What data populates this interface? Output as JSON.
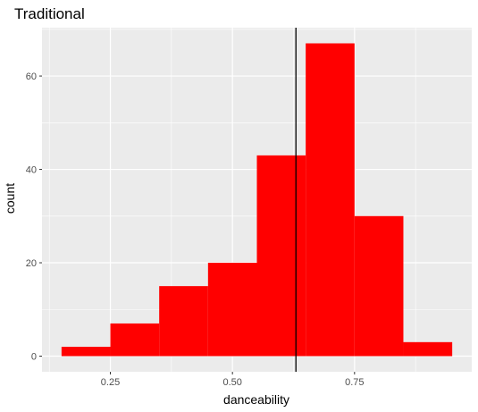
{
  "chart_data": {
    "type": "bar",
    "title": "Traditional",
    "xlabel": "danceability",
    "ylabel": "count",
    "bins": [
      {
        "x0": 0.15,
        "x1": 0.25,
        "count": 2
      },
      {
        "x0": 0.25,
        "x1": 0.35,
        "count": 7
      },
      {
        "x0": 0.35,
        "x1": 0.45,
        "count": 15
      },
      {
        "x0": 0.45,
        "x1": 0.55,
        "count": 20
      },
      {
        "x0": 0.55,
        "x1": 0.65,
        "count": 43
      },
      {
        "x0": 0.65,
        "x1": 0.75,
        "count": 67
      },
      {
        "x0": 0.75,
        "x1": 0.85,
        "count": 30
      },
      {
        "x0": 0.85,
        "x1": 0.95,
        "count": 3
      }
    ],
    "vline_x": 0.63,
    "xlim": [
      0.11,
      0.99
    ],
    "ylim": [
      -3.35,
      70.35
    ],
    "x_ticks": [
      {
        "value": 0.25,
        "label": "0.25"
      },
      {
        "value": 0.5,
        "label": "0.50"
      },
      {
        "value": 0.75,
        "label": "0.75"
      }
    ],
    "y_ticks": [
      {
        "value": 0,
        "label": "0"
      },
      {
        "value": 20,
        "label": "20"
      },
      {
        "value": 40,
        "label": "40"
      },
      {
        "value": 60,
        "label": "60"
      }
    ],
    "bar_color": "#FF0000",
    "vline_color": "#000000",
    "panel_color": "#EBEBEB",
    "grid_color": "#FFFFFF",
    "grid": true
  }
}
